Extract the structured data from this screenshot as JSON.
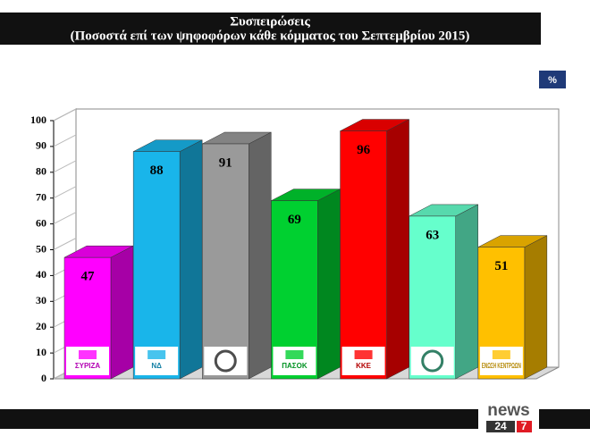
{
  "chart_data": {
    "type": "bar3d",
    "title": "Συσπειρώσεις",
    "subtitle": "(Ποσοστά επί των ψηφοφόρων κάθε κόμματος του Σεπτεμβρίου 2015)",
    "unit_badge": "%",
    "categories": [
      "ΣΥΡΙΖΑ",
      "ΝΔ",
      null,
      "ΠΑΣΟΚ",
      "ΚΚΕ",
      null,
      "ΕΝΩΣΗ ΚΕΝΤΡΩΩΝ"
    ],
    "values": [
      47,
      88,
      91,
      69,
      96,
      63,
      51
    ],
    "colors": [
      "#ff00ff",
      "#19b5ea",
      "#9a9a9a",
      "#00d030",
      "#ff0000",
      "#66ffcc",
      "#ffc000"
    ],
    "ylim": [
      0,
      100
    ],
    "yticks": [
      0,
      10,
      20,
      30,
      40,
      50,
      60,
      70,
      80,
      90,
      100
    ],
    "footer": {
      "brand": "news",
      "num1": "24",
      "num2": "7"
    }
  }
}
